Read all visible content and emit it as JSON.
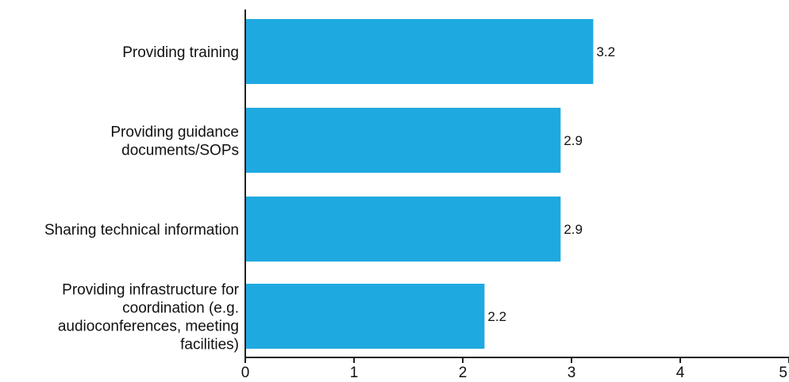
{
  "chart_data": {
    "type": "bar",
    "orientation": "horizontal",
    "title": "",
    "xlabel": "",
    "ylabel": "",
    "categories": [
      "Providing training",
      "Providing guidance documents/SOPs",
      "Sharing technical information",
      "Providing infrastructure for coordination (e.g. audioconferences, meeting facilities)"
    ],
    "category_label_lines": [
      [
        "Providing training"
      ],
      [
        "Providing guidance",
        "documents/SOPs"
      ],
      [
        "Sharing technical information"
      ],
      [
        "Providing infrastructure for",
        "coordination (e.g.",
        "audioconferences, meeting",
        "facilities)"
      ]
    ],
    "values": [
      3.2,
      2.9,
      2.9,
      2.2
    ],
    "value_labels": [
      "3.2",
      "2.9",
      "2.9",
      "2.2"
    ],
    "xlim": [
      0,
      5
    ],
    "x_ticks": [
      0,
      1,
      2,
      3,
      4,
      5
    ],
    "x_tick_labels": [
      "0",
      "1",
      "2",
      "3",
      "4",
      "5"
    ],
    "bar_color": "#1FA9E1",
    "axis_color": "#222222",
    "grid": false,
    "legend": "none"
  }
}
